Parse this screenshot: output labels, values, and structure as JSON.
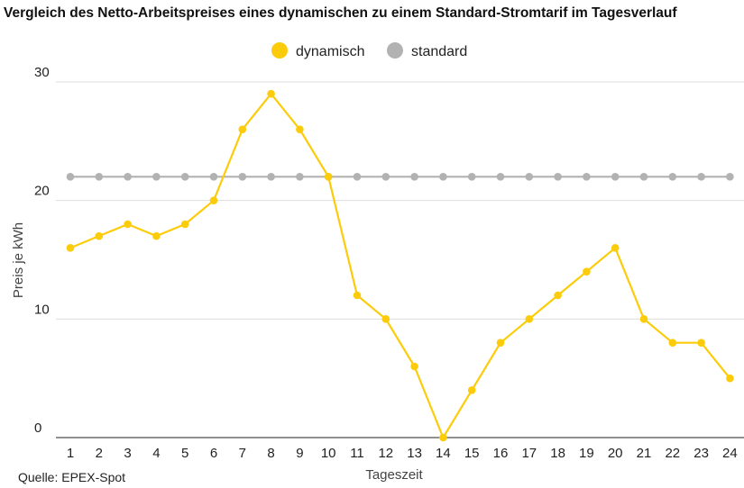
{
  "chart_data": {
    "type": "line",
    "title": "Vergleich des Netto-Arbeitspreises eines dynamischen zu einem Standard-Stromtarif im Tagesverlauf",
    "xlabel": "Tageszeit",
    "ylabel": "Preis je kWh",
    "x": [
      "1",
      "2",
      "3",
      "4",
      "5",
      "6",
      "7",
      "8",
      "9",
      "10",
      "11",
      "12",
      "13",
      "14",
      "15",
      "16",
      "17",
      "18",
      "19",
      "20",
      "21",
      "22",
      "23",
      "24"
    ],
    "ylim": [
      0,
      30
    ],
    "yticks": [
      "0",
      "10",
      "20",
      "30"
    ],
    "grid": true,
    "legend_position": "top-center",
    "series": [
      {
        "name": "dynamisch",
        "color": "#fccc0a",
        "values": [
          16,
          17,
          18,
          17,
          18,
          20,
          26,
          29,
          26,
          22,
          12,
          10,
          6,
          0,
          4,
          8,
          10,
          12,
          14,
          16,
          10,
          8,
          8,
          5
        ]
      },
      {
        "name": "standard",
        "color": "#b2b2b2",
        "values": [
          22,
          22,
          22,
          22,
          22,
          22,
          22,
          22,
          22,
          22,
          22,
          22,
          22,
          22,
          22,
          22,
          22,
          22,
          22,
          22,
          22,
          22,
          22,
          22
        ]
      }
    ]
  },
  "source": "Quelle: EPEX-Spot",
  "colors": {
    "grid": "#dddddd",
    "axis": "#222222"
  }
}
